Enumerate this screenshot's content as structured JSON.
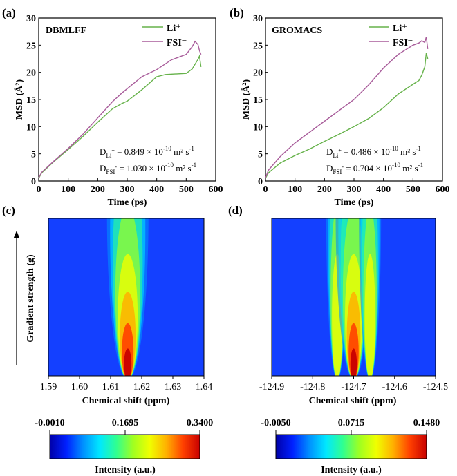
{
  "colors": {
    "li_line": "#66b24a",
    "fsi_line": "#a85c9a",
    "heatmap_background": "#1440ff",
    "colormap": [
      "#0000a8",
      "#0020ff",
      "#0090ff",
      "#00e8ff",
      "#30ff90",
      "#a0ff20",
      "#f0ff00",
      "#ffb000",
      "#ff4000",
      "#c80000"
    ]
  },
  "chart_data": [
    {
      "panel": "(a)",
      "type": "line",
      "title": "DBMLFF",
      "xlabel": "Time (ps)",
      "ylabel": "MSD (Å²)",
      "xlim": [
        0,
        600
      ],
      "ylim": [
        0,
        30
      ],
      "xticks": [
        "0",
        "100",
        "200",
        "300",
        "400",
        "500",
        "600"
      ],
      "yticks": [
        "0",
        "5",
        "10",
        "15",
        "20",
        "25",
        "30"
      ],
      "legend_position": "top-right",
      "annotations": [
        {
          "species": "Li",
          "charge": "+",
          "text": " = 0.849 × 10",
          "exp": "-10",
          "unit": " m² s",
          "unit_exp": "-1"
        },
        {
          "species": "FSI",
          "charge": "-",
          "text": " = 1.030 × 10",
          "exp": "-10",
          "unit": " m² s",
          "unit_exp": "-1"
        }
      ],
      "series": [
        {
          "name": "Li⁺",
          "x": [
            0,
            10,
            50,
            100,
            150,
            200,
            250,
            280,
            300,
            350,
            400,
            430,
            500,
            520,
            540,
            545,
            550
          ],
          "y": [
            0.5,
            1.5,
            3.5,
            5.8,
            8.2,
            10.8,
            13.3,
            14.2,
            14.7,
            16.8,
            19.2,
            19.6,
            19.8,
            20.6,
            22.4,
            23,
            21
          ]
        },
        {
          "name": "FSI⁻",
          "x": [
            0,
            10,
            50,
            100,
            150,
            200,
            250,
            280,
            300,
            350,
            400,
            450,
            500,
            520,
            530,
            540,
            545,
            550
          ],
          "y": [
            0.6,
            1.6,
            3.6,
            6,
            8.6,
            11.6,
            14.6,
            16.1,
            17,
            19.2,
            20.5,
            22.3,
            23.3,
            24.7,
            25.7,
            25.1,
            24,
            23.3
          ]
        }
      ]
    },
    {
      "panel": "(b)",
      "type": "line",
      "title": "GROMACS",
      "xlabel": "Time (ps)",
      "ylabel": "MSD (Å²)",
      "xlim": [
        0,
        600
      ],
      "ylim": [
        0,
        30
      ],
      "xticks": [
        "0",
        "100",
        "200",
        "300",
        "400",
        "500",
        "600"
      ],
      "yticks": [
        "0",
        "5",
        "10",
        "15",
        "20",
        "25",
        "30"
      ],
      "legend_position": "top-right",
      "annotations": [
        {
          "species": "Li",
          "charge": "+",
          "text": " = 0.486 × 10",
          "exp": "-10",
          "unit": " m² s",
          "unit_exp": "-1"
        },
        {
          "species": "FSI",
          "charge": "-",
          "text": " = 0.704 × 10",
          "exp": "-10",
          "unit": " m² s",
          "unit_exp": "-1"
        }
      ],
      "series": [
        {
          "name": "Li⁺",
          "x": [
            0,
            10,
            50,
            100,
            150,
            200,
            250,
            300,
            350,
            400,
            450,
            500,
            520,
            530,
            540,
            545,
            550
          ],
          "y": [
            0.5,
            1.5,
            3.3,
            4.7,
            5.9,
            7.3,
            8.6,
            10,
            11.5,
            13.5,
            16,
            17.8,
            18.5,
            19.5,
            21,
            23.5,
            22.5
          ]
        },
        {
          "name": "FSI⁻",
          "x": [
            0,
            10,
            50,
            100,
            150,
            200,
            250,
            300,
            350,
            400,
            450,
            500,
            520,
            530,
            540,
            545,
            550
          ],
          "y": [
            0.6,
            2,
            4.5,
            7,
            9,
            11,
            13,
            15,
            17.7,
            20.8,
            23.3,
            25,
            25.4,
            25.8,
            25.5,
            26.5,
            24.3
          ]
        }
      ]
    },
    {
      "panel": "(c)",
      "type": "heatmap",
      "xlabel": "Chemical shift (ppm)",
      "ylabel": "Gradient strength (g)",
      "xlim": [
        1.59,
        1.64
      ],
      "xticks": [
        "1.59",
        "1.60",
        "1.61",
        "1.62",
        "1.63",
        "1.64"
      ],
      "peaks_ppm": [
        1.6155
      ],
      "colorbar": {
        "ticks": [
          "-0.0010",
          "0.1695",
          "0.3400"
        ],
        "label": "Intensity (a.u.)",
        "min": -0.001,
        "max": 0.34
      }
    },
    {
      "panel": "(d)",
      "type": "heatmap",
      "xlabel": "Chemical shift (ppm)",
      "ylabel": "",
      "xlim": [
        -124.9,
        -124.5
      ],
      "xticks": [
        "-124.9",
        "-124.8",
        "-124.7",
        "-124.6",
        "-124.5"
      ],
      "peaks_ppm": [
        -124.74,
        -124.7,
        -124.66
      ],
      "colorbar": {
        "ticks": [
          "-0.0050",
          "0.0715",
          "0.1480"
        ],
        "label": "Intensity (a.u.)",
        "min": -0.005,
        "max": 0.148
      }
    }
  ]
}
